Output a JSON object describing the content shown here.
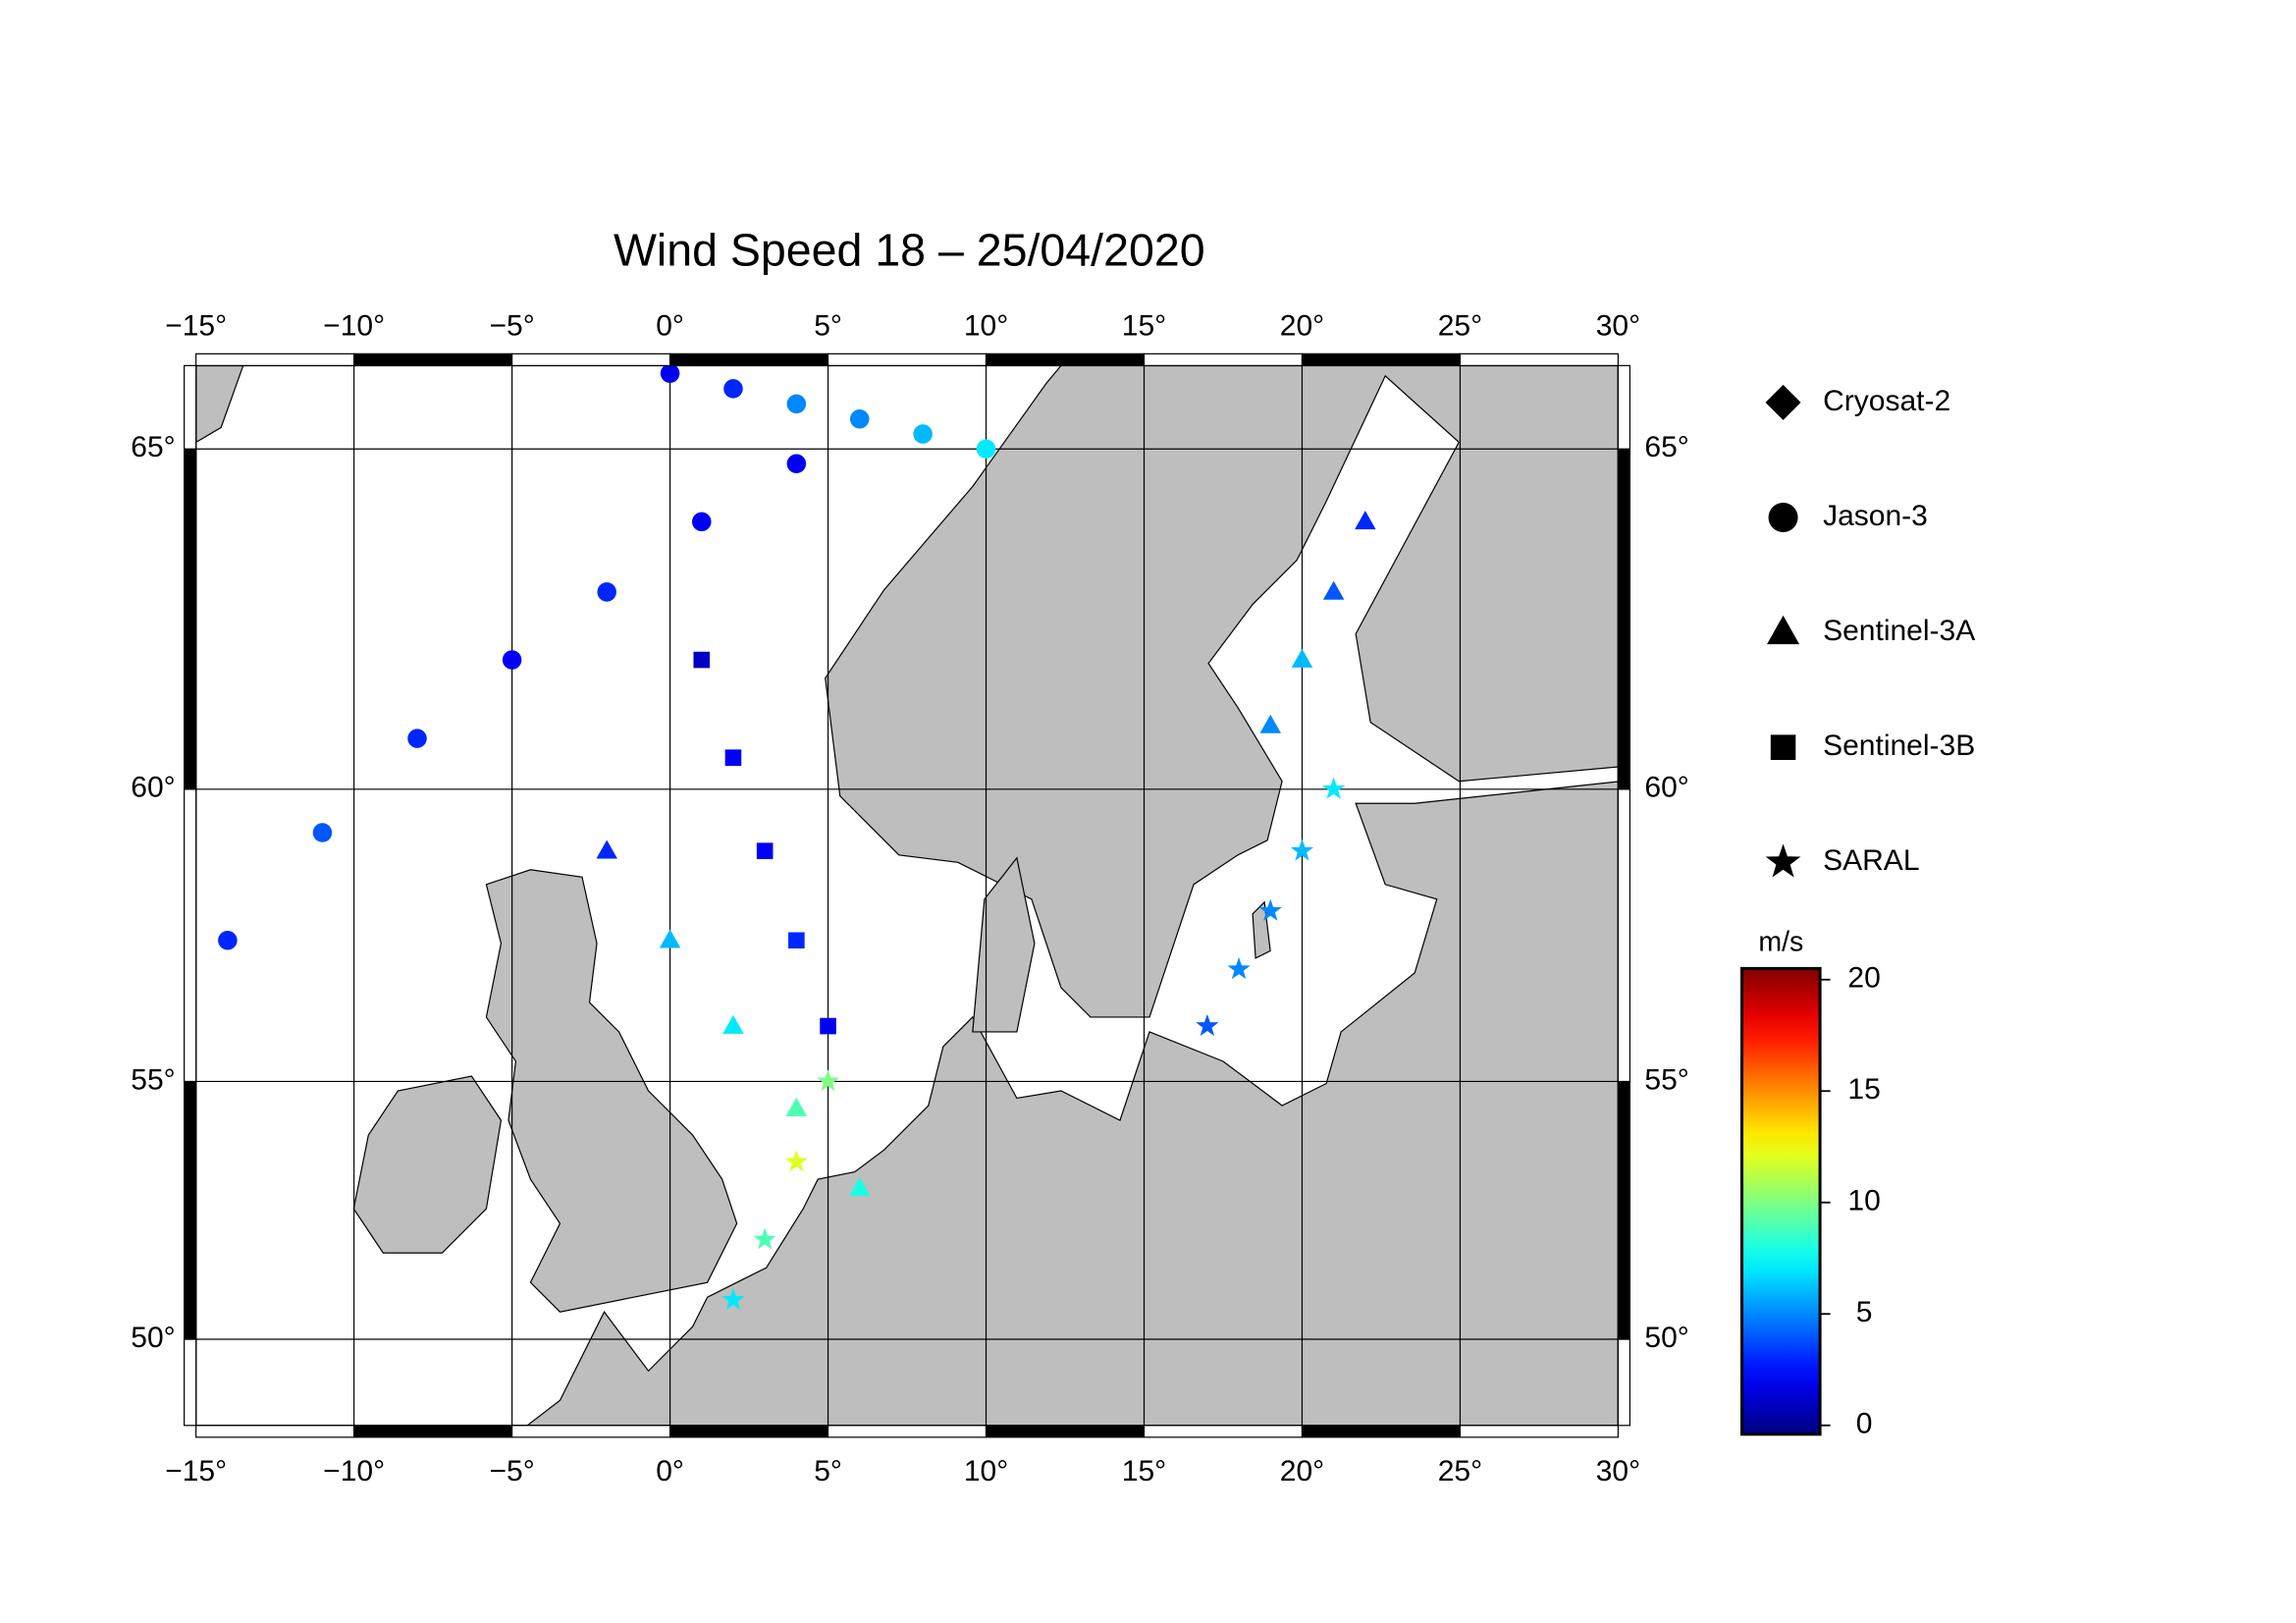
{
  "chart_data": {
    "type": "map",
    "projection": "mercator",
    "title": "Wind Speed 18 – 25/04/2020",
    "xlim": [
      -15,
      30
    ],
    "ylim": [
      48.2,
      66.1
    ],
    "xticks": [
      {
        "value": -15,
        "label": "−15°"
      },
      {
        "value": -10,
        "label": "−10°"
      },
      {
        "value": -5,
        "label": "−5°"
      },
      {
        "value": 0,
        "label": "0°"
      },
      {
        "value": 5,
        "label": "5°"
      },
      {
        "value": 10,
        "label": "10°"
      },
      {
        "value": 15,
        "label": "15°"
      },
      {
        "value": 20,
        "label": "20°"
      },
      {
        "value": 25,
        "label": "25°"
      },
      {
        "value": 30,
        "label": "30°"
      }
    ],
    "yticks": [
      {
        "value": 50,
        "label": "50°"
      },
      {
        "value": 55,
        "label": "55°"
      },
      {
        "value": 60,
        "label": "60°"
      },
      {
        "value": 65,
        "label": "65°"
      }
    ],
    "grid": true,
    "colormap": "jet",
    "legend": [
      {
        "name": "Cryosat-2",
        "marker": "diamond"
      },
      {
        "name": "Jason-3",
        "marker": "circle"
      },
      {
        "name": "Sentinel-3A",
        "marker": "triangle"
      },
      {
        "name": "Sentinel-3B",
        "marker": "square"
      },
      {
        "name": "SARAL",
        "marker": "star"
      }
    ],
    "colorbar": {
      "label": "m/s",
      "lim": [
        -0.4,
        20.5
      ],
      "ticks": [
        0,
        5,
        10,
        15,
        20
      ]
    },
    "tracks": [
      {
        "name": "Jason-3",
        "lon": [
          -14,
          -11,
          -8,
          -5,
          -2,
          1,
          4
        ],
        "lat": [
          57.5,
          59.3,
          60.8,
          62.0,
          63.0,
          64.0,
          64.8
        ],
        "values": [
          3,
          4,
          3,
          2,
          3,
          2,
          2
        ]
      },
      {
        "name": "Jason-3",
        "lon": [
          0,
          2,
          4,
          6,
          8,
          10
        ],
        "lat": [
          66,
          65.8,
          65.6,
          65.4,
          65.2,
          65
        ],
        "values": [
          2,
          3,
          5,
          5,
          6,
          7
        ]
      },
      {
        "name": "Sentinel-3A",
        "lon": [
          -2,
          0,
          2,
          4,
          6
        ],
        "lat": [
          59,
          57.5,
          56,
          54.5,
          53
        ],
        "values": [
          3,
          6,
          7,
          9,
          8
        ]
      },
      {
        "name": "Sentinel-3B",
        "lon": [
          1,
          2,
          3,
          4,
          5
        ],
        "lat": [
          62,
          60.5,
          59,
          57.5,
          56
        ],
        "values": [
          1,
          2,
          2,
          3,
          2
        ]
      },
      {
        "name": "SARAL",
        "lon": [
          2,
          3,
          4,
          5
        ],
        "lat": [
          50.8,
          52,
          53.5,
          55
        ],
        "values": [
          7,
          9,
          12,
          10
        ]
      },
      {
        "name": "SARAL",
        "lon": [
          17,
          18,
          19,
          20,
          21
        ],
        "lat": [
          56,
          57,
          58,
          59,
          60
        ],
        "values": [
          4,
          5,
          5,
          6,
          7
        ]
      },
      {
        "name": "Sentinel-3A",
        "lon": [
          19,
          20,
          21,
          22
        ],
        "lat": [
          61,
          62,
          63,
          64
        ],
        "values": [
          5,
          6,
          4,
          3
        ]
      }
    ]
  }
}
